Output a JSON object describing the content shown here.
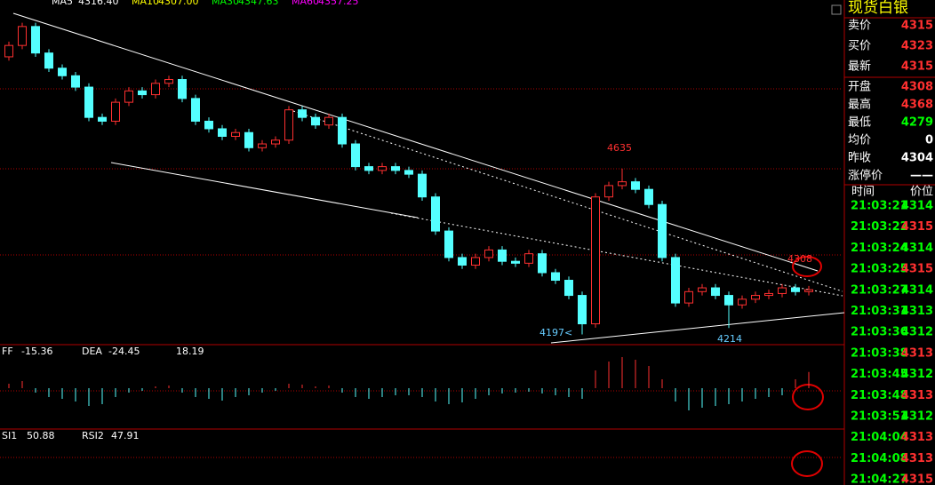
{
  "chart_data": {
    "type": "candlestick",
    "ma_labels": [
      {
        "name": "MA5",
        "value": "4316.40",
        "color": "#ffffff"
      },
      {
        "name": "MA10",
        "value": "4307.00",
        "color": "#ffff00"
      },
      {
        "name": "MA30",
        "value": "4347.63",
        "color": "#00ff00"
      },
      {
        "name": "MA60",
        "value": "4357.25",
        "color": "#ff00ff"
      }
    ],
    "open": [
      4930,
      4960,
      5010,
      4940,
      4900,
      4880,
      4850,
      4770,
      4760,
      4810,
      4840,
      4830,
      4860,
      4870,
      4820,
      4760,
      4740,
      4720,
      4730,
      4690,
      4700,
      4710,
      4790,
      4770,
      4750,
      4770,
      4700,
      4640,
      4630,
      4640,
      4630,
      4620,
      4560,
      4470,
      4400,
      4380,
      4400,
      4420,
      4390,
      4385,
      4410,
      4360,
      4340,
      4300,
      4225,
      4560,
      4590,
      4600,
      4580,
      4540,
      4400,
      4280,
      4310,
      4320,
      4300,
      4275,
      4290,
      4300,
      4305,
      4320,
      4310
    ],
    "high": [
      4970,
      5020,
      5020,
      4950,
      4910,
      4890,
      4860,
      4780,
      4820,
      4850,
      4850,
      4870,
      4880,
      4880,
      4830,
      4770,
      4750,
      4740,
      4740,
      4710,
      4720,
      4800,
      4800,
      4780,
      4780,
      4780,
      4710,
      4650,
      4650,
      4650,
      4640,
      4630,
      4570,
      4480,
      4410,
      4410,
      4430,
      4430,
      4400,
      4420,
      4420,
      4370,
      4350,
      4310,
      4570,
      4600,
      4635,
      4610,
      4590,
      4550,
      4410,
      4320,
      4330,
      4330,
      4310,
      4300,
      4310,
      4315,
      4330,
      4330,
      4325
    ],
    "low": [
      4920,
      4950,
      4930,
      4890,
      4870,
      4840,
      4760,
      4750,
      4750,
      4800,
      4820,
      4820,
      4850,
      4810,
      4750,
      4730,
      4710,
      4710,
      4680,
      4680,
      4690,
      4700,
      4760,
      4740,
      4740,
      4690,
      4630,
      4620,
      4620,
      4620,
      4610,
      4550,
      4460,
      4390,
      4370,
      4370,
      4390,
      4380,
      4375,
      4375,
      4350,
      4330,
      4290,
      4197,
      4215,
      4550,
      4580,
      4570,
      4530,
      4390,
      4270,
      4270,
      4300,
      4290,
      4214,
      4265,
      4280,
      4290,
      4295,
      4300,
      4300
    ],
    "close": [
      4960,
      5010,
      4940,
      4900,
      4880,
      4850,
      4770,
      4760,
      4810,
      4840,
      4830,
      4860,
      4870,
      4820,
      4760,
      4740,
      4720,
      4730,
      4690,
      4700,
      4710,
      4790,
      4770,
      4750,
      4770,
      4700,
      4640,
      4630,
      4640,
      4630,
      4620,
      4560,
      4470,
      4400,
      4380,
      4400,
      4420,
      4390,
      4385,
      4410,
      4360,
      4340,
      4300,
      4225,
      4560,
      4590,
      4600,
      4580,
      4540,
      4400,
      4280,
      4310,
      4320,
      4300,
      4275,
      4290,
      4300,
      4305,
      4320,
      4310,
      4315
    ],
    "ylim": [
      4170,
      5080
    ],
    "up_color": "#ff3030",
    "down_color": "#54ffff",
    "annotations": [
      "4635",
      "4197<",
      "4214",
      "4308"
    ],
    "macd_header": [
      "FF",
      "-15.36",
      "DEA",
      "-24.45",
      "18.19"
    ],
    "macd": [
      5,
      8,
      -5,
      -10,
      -12,
      -15,
      -20,
      -18,
      -10,
      -5,
      -3,
      2,
      3,
      -5,
      -10,
      -12,
      -14,
      -10,
      -8,
      -5,
      -3,
      5,
      4,
      2,
      3,
      -5,
      -10,
      -12,
      -10,
      -8,
      -8,
      -10,
      -15,
      -18,
      -16,
      -12,
      -8,
      -6,
      -5,
      -4,
      -6,
      -8,
      -10,
      -12,
      20,
      30,
      35,
      32,
      25,
      10,
      -15,
      -25,
      -22,
      -20,
      -18,
      -15,
      -12,
      -10,
      -8,
      10,
      18.19
    ],
    "macd_ylim": [
      -45,
      45
    ],
    "rsi_header": [
      "SI1",
      "50.88",
      "RSI2",
      "47.91"
    ]
  },
  "quote_panel": {
    "title": "现货白银",
    "quotes": [
      {
        "label": "卖价",
        "value": "4315",
        "color": "#ff3030"
      },
      {
        "label": "买价",
        "value": "4323",
        "color": "#ff3030"
      },
      {
        "label": "最新",
        "value": "4315",
        "color": "#ff3030"
      },
      {
        "label": "开盘",
        "value": "4308",
        "color": "#ff3030"
      },
      {
        "label": "最高",
        "value": "4368",
        "color": "#ff3030"
      },
      {
        "label": "最低",
        "value": "4279",
        "color": "#00ff00"
      },
      {
        "label": "均价",
        "value": "0",
        "color": "#ffffff"
      },
      {
        "label": "昨收",
        "value": "4304",
        "color": "#ffffff"
      },
      {
        "label": "涨停价",
        "value": "——",
        "color": "#ffffff"
      }
    ],
    "tick_header": [
      "时间",
      "价位"
    ],
    "ticks": [
      {
        "time": "21:03:21",
        "price": "4314",
        "color": "#00ff00"
      },
      {
        "time": "21:03:22",
        "price": "4315",
        "color": "#ff3030"
      },
      {
        "time": "21:03:24",
        "price": "4314",
        "color": "#00ff00"
      },
      {
        "time": "21:03:25",
        "price": "4315",
        "color": "#ff3030"
      },
      {
        "time": "21:03:27",
        "price": "4314",
        "color": "#00ff00"
      },
      {
        "time": "21:03:31",
        "price": "4313",
        "color": "#00ff00"
      },
      {
        "time": "21:03:36",
        "price": "4312",
        "color": "#00ff00"
      },
      {
        "time": "21:03:38",
        "price": "4313",
        "color": "#ff3030"
      },
      {
        "time": "21:03:45",
        "price": "4312",
        "color": "#00ff00"
      },
      {
        "time": "21:03:48",
        "price": "4313",
        "color": "#ff3030"
      },
      {
        "time": "21:03:51",
        "price": "4312",
        "color": "#00ff00"
      },
      {
        "time": "21:04:04",
        "price": "4313",
        "color": "#ff3030"
      },
      {
        "time": "21:04:08",
        "price": "4313",
        "color": "#ff3030"
      },
      {
        "time": "21:04:27",
        "price": "4315",
        "color": "#ff3030"
      }
    ]
  }
}
